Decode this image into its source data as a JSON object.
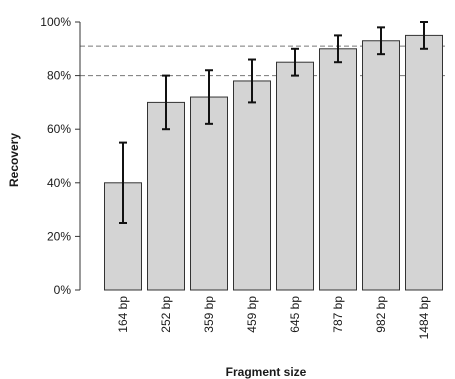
{
  "chart_data": {
    "type": "bar",
    "categories": [
      "164 bp",
      "252 bp",
      "359 bp",
      "459 bp",
      "645 bp",
      "787 bp",
      "982 bp",
      "1484 bp"
    ],
    "values": [
      40,
      70,
      72,
      78,
      85,
      90,
      93,
      95
    ],
    "error_low": [
      25,
      60,
      62,
      70,
      80,
      85,
      88,
      90
    ],
    "error_high": [
      55,
      80,
      82,
      86,
      90,
      95,
      98,
      100
    ],
    "xlabel": "Fragment size",
    "ylabel": "Recovery",
    "ylim": [
      0,
      100
    ],
    "yticks": [
      0,
      20,
      40,
      60,
      80,
      100
    ],
    "ytick_labels": [
      "0%",
      "20%",
      "40%",
      "60%",
      "80%",
      "100%"
    ],
    "reference_lines": [
      80,
      91
    ],
    "bar_color": "#d4d4d4",
    "bar_edge_color": "#333333",
    "reference_line_color": "#777777",
    "grid": false,
    "legend": false
  }
}
